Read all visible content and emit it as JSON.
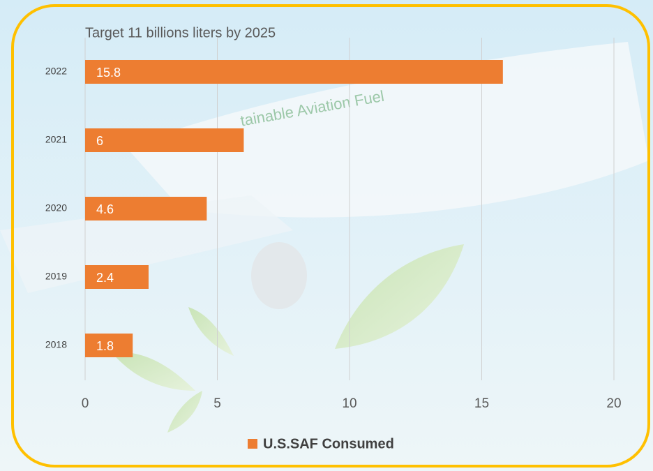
{
  "chart_data": {
    "type": "barh",
    "title": "Target 11 billions liters by 2025",
    "background_text": "tainable Aviation Fuel",
    "categories": [
      "2022",
      "2021",
      "2020",
      "2019",
      "2018"
    ],
    "series": [
      {
        "name": "U.S.SAF Consumed",
        "color": "#ED7D31",
        "values": [
          15.8,
          6,
          4.6,
          2.4,
          1.8
        ]
      }
    ],
    "xlim": [
      0,
      20
    ],
    "xticks": [
      0,
      5,
      10,
      15,
      20
    ],
    "grid": true,
    "legend": "bottom"
  }
}
